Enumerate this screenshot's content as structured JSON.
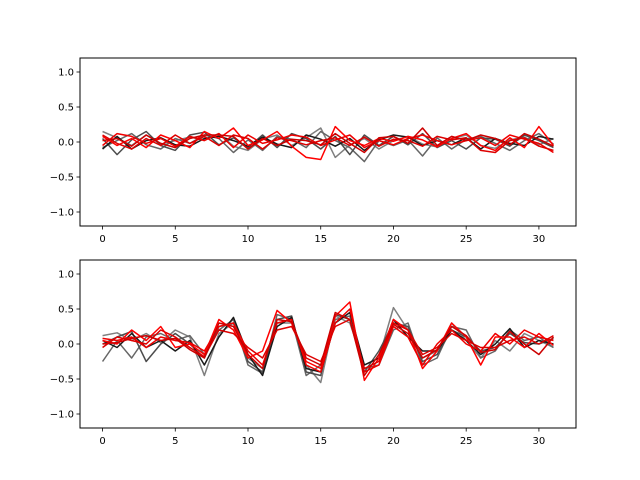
{
  "chart_data": [
    {
      "type": "line",
      "title": "",
      "xlabel": "",
      "ylabel": "",
      "xlim": [
        -1.55,
        32.55
      ],
      "ylim": [
        -1.2,
        1.2
      ],
      "xticks": [
        0,
        5,
        10,
        15,
        20,
        25,
        30
      ],
      "yticks": [
        -1.0,
        -0.5,
        0.0,
        0.5,
        1.0
      ],
      "tick_labels_x": [
        "0",
        "5",
        "10",
        "15",
        "20",
        "25",
        "30"
      ],
      "tick_labels_y": [
        "−1.0",
        "−0.5",
        "0.0",
        "0.5",
        "1.0"
      ],
      "grid": false,
      "x": [
        0,
        1,
        2,
        3,
        4,
        5,
        6,
        7,
        8,
        9,
        10,
        11,
        12,
        13,
        14,
        15,
        16,
        17,
        18,
        19,
        20,
        21,
        22,
        23,
        24,
        25,
        26,
        27,
        28,
        29,
        30,
        31
      ],
      "series": [
        {
          "color": "#7f7f7f",
          "values": [
            0.15,
            0.06,
            -0.05,
            0.1,
            -0.03,
            0.02,
            0.07,
            0.03,
            0.12,
            -0.06,
            -0.12,
            0.04,
            0.1,
            -0.05,
            0.06,
            0.2,
            -0.22,
            -0.04,
            0.05,
            -0.1,
            0.02,
            0.08,
            -0.03,
            -0.07,
            0.05,
            0.1,
            -0.05,
            -0.09,
            0.03,
            0.07,
            -0.04,
            0.05
          ]
        },
        {
          "color": "#666666",
          "values": [
            -0.08,
            0.02,
            0.12,
            -0.04,
            -0.1,
            0.05,
            -0.02,
            0.1,
            0.05,
            -0.15,
            0.03,
            -0.12,
            0.08,
            0.04,
            -0.08,
            0.15,
            0.02,
            -0.08,
            -0.28,
            0.02,
            -0.05,
            0.03,
            -0.2,
            0.06,
            -0.1,
            0.04,
            0.08,
            -0.02,
            -0.12,
            0.02,
            0.12,
            -0.03
          ]
        },
        {
          "color": "#4d4d4d",
          "values": [
            0.05,
            -0.18,
            0.03,
            0.15,
            -0.05,
            -0.12,
            0.1,
            0.14,
            -0.04,
            0.06,
            -0.08,
            0.1,
            -0.08,
            0.12,
            0.05,
            -0.1,
            0.08,
            -0.18,
            0.1,
            -0.05,
            0.08,
            -0.04,
            0.12,
            -0.08,
            0.02,
            -0.1,
            0.06,
            0.04,
            -0.06,
            0.1,
            0.02,
            -0.08
          ]
        },
        {
          "color": "#1a1a1a",
          "values": [
            -0.1,
            0.08,
            -0.1,
            0.02,
            0.06,
            -0.04,
            -0.06,
            0.05,
            0.08,
            0.02,
            -0.06,
            0.07,
            -0.03,
            -0.08,
            0.1,
            0.04,
            -0.06,
            0.05,
            -0.12,
            0.03,
            0.1,
            0.07,
            -0.05,
            0.02,
            -0.04,
            0.06,
            -0.1,
            0.05,
            -0.02,
            -0.05,
            0.08,
            0.04
          ]
        },
        {
          "color": "#ff0000",
          "values": [
            0.08,
            -0.05,
            0.05,
            -0.08,
            0.1,
            0.02,
            -0.08,
            0.15,
            0.05,
            0.2,
            -0.05,
            0.03,
            0.15,
            -0.06,
            -0.22,
            -0.25,
            0.22,
            0.02,
            -0.05,
            0.05,
            0.01,
            0.08,
            0.03,
            -0.07,
            0.05,
            0.12,
            -0.05,
            -0.12,
            0.06,
            -0.08,
            0.22,
            -0.05
          ]
        },
        {
          "color": "#ee0000",
          "values": [
            -0.05,
            0.12,
            0.08,
            -0.02,
            0.05,
            -0.06,
            0.08,
            0.02,
            0.12,
            -0.08,
            0.1,
            -0.02,
            0.03,
            0.1,
            0.07,
            -0.05,
            0.03,
            0.1,
            -0.08,
            0.02,
            -0.04,
            0.05,
            0.1,
            0.02,
            -0.04,
            0.02,
            0.06,
            -0.05,
            0.1,
            0.04,
            -0.02,
            -0.15
          ]
        },
        {
          "color": "#dd0000",
          "values": [
            0.1,
            -0.02,
            -0.1,
            0.05,
            -0.05,
            0.1,
            -0.02,
            0.08,
            -0.05,
            0.1,
            0.05,
            -0.1,
            0.06,
            0.02,
            -0.04,
            0.02,
            0.06,
            -0.05,
            0.07,
            -0.06,
            0.04,
            0.02,
            -0.06,
            0.08,
            0.03,
            0.06,
            -0.12,
            -0.15,
            0.02,
            0.06,
            -0.06,
            -0.12
          ]
        },
        {
          "color": "#cc0000",
          "values": [
            0.02,
            0.05,
            -0.06,
            0.1,
            -0.02,
            -0.08,
            0.05,
            0.1,
            0.1,
            0.08,
            -0.1,
            0.05,
            -0.05,
            0.04,
            0.02,
            -0.04,
            0.12,
            -0.02,
            -0.15,
            0.06,
            0.08,
            -0.02,
            0.2,
            -0.05,
            0.08,
            0.02,
            0.1,
            0.05,
            -0.04,
            0.12,
            0.04,
            -0.06
          ]
        }
      ]
    },
    {
      "type": "line",
      "title": "",
      "xlabel": "",
      "ylabel": "",
      "xlim": [
        -1.55,
        32.55
      ],
      "ylim": [
        -1.2,
        1.2
      ],
      "xticks": [
        0,
        5,
        10,
        15,
        20,
        25,
        30
      ],
      "yticks": [
        -1.0,
        -0.5,
        0.0,
        0.5,
        1.0
      ],
      "tick_labels_x": [
        "0",
        "5",
        "10",
        "15",
        "20",
        "25",
        "30"
      ],
      "tick_labels_y": [
        "−1.0",
        "−0.5",
        "0.0",
        "0.5",
        "1.0"
      ],
      "grid": false,
      "x": [
        0,
        1,
        2,
        3,
        4,
        5,
        6,
        7,
        8,
        9,
        10,
        11,
        12,
        13,
        14,
        15,
        16,
        17,
        18,
        19,
        20,
        21,
        22,
        23,
        24,
        25,
        26,
        27,
        28,
        29,
        30,
        31
      ],
      "series": [
        {
          "color": "#7f7f7f",
          "values": [
            0.12,
            0.16,
            0.05,
            0.15,
            0.02,
            0.2,
            0.1,
            -0.45,
            0.15,
            0.3,
            -0.2,
            -0.35,
            0.3,
            0.3,
            -0.3,
            -0.55,
            0.4,
            0.3,
            -0.3,
            -0.2,
            0.52,
            0.2,
            -0.2,
            -0.1,
            0.3,
            0.05,
            -0.2,
            0.05,
            -0.1,
            0.15,
            0.05,
            -0.05
          ]
        },
        {
          "color": "#666666",
          "values": [
            -0.25,
            0.05,
            -0.2,
            0.1,
            0.15,
            0.05,
            0.12,
            -0.15,
            0.2,
            0.35,
            -0.3,
            -0.42,
            0.42,
            0.35,
            -0.45,
            -0.3,
            0.35,
            0.4,
            -0.35,
            -0.3,
            0.2,
            0.3,
            -0.3,
            -0.2,
            0.25,
            0.2,
            -0.2,
            -0.1,
            0.2,
            0.05,
            0.1,
            -0.05
          ]
        },
        {
          "color": "#4d4d4d",
          "values": [
            0.0,
            0.1,
            0.18,
            -0.25,
            0.0,
            0.15,
            0.0,
            -0.2,
            0.25,
            0.3,
            -0.25,
            -0.4,
            0.35,
            0.4,
            -0.4,
            -0.45,
            0.42,
            0.35,
            -0.4,
            -0.1,
            0.3,
            0.25,
            -0.25,
            -0.15,
            0.2,
            0.1,
            -0.1,
            -0.05,
            0.15,
            0.02,
            0.0,
            0.08
          ]
        },
        {
          "color": "#1a1a1a",
          "values": [
            0.05,
            -0.05,
            0.15,
            -0.05,
            0.05,
            -0.1,
            0.05,
            -0.3,
            0.1,
            0.38,
            -0.15,
            -0.45,
            0.25,
            0.38,
            -0.35,
            -0.4,
            0.3,
            0.45,
            -0.3,
            -0.2,
            0.35,
            0.1,
            -0.1,
            -0.1,
            0.2,
            0.05,
            -0.15,
            0.0,
            0.22,
            -0.05,
            0.05,
            0.0
          ]
        },
        {
          "color": "#ff0000",
          "values": [
            0.05,
            0.0,
            0.2,
            0.05,
            0.25,
            -0.05,
            0.0,
            -0.15,
            0.35,
            0.2,
            -0.2,
            -0.1,
            0.48,
            0.3,
            -0.25,
            -0.35,
            0.4,
            0.6,
            -0.52,
            -0.2,
            0.35,
            0.2,
            -0.35,
            -0.1,
            0.3,
            0.1,
            -0.3,
            0.1,
            0.1,
            -0.05,
            0.15,
            -0.02
          ]
        },
        {
          "color": "#ee0000",
          "values": [
            0.08,
            0.05,
            0.1,
            -0.05,
            0.1,
            0.05,
            0.02,
            -0.1,
            0.25,
            0.3,
            -0.1,
            -0.3,
            0.3,
            0.35,
            -0.3,
            -0.4,
            0.3,
            0.5,
            -0.4,
            -0.3,
            0.25,
            0.1,
            -0.3,
            0.0,
            0.2,
            0.0,
            -0.1,
            0.15,
            0.0,
            0.2,
            0.1,
            0.05
          ]
        },
        {
          "color": "#dd0000",
          "values": [
            -0.05,
            0.1,
            0.05,
            0.0,
            0.2,
            0.1,
            -0.05,
            -0.18,
            0.2,
            0.15,
            -0.05,
            -0.2,
            0.2,
            0.25,
            -0.15,
            -0.25,
            0.25,
            0.35,
            -0.35,
            -0.25,
            0.3,
            0.2,
            -0.15,
            -0.05,
            0.15,
            0.05,
            -0.05,
            -0.05,
            0.05,
            0.1,
            0.0,
            0.12
          ]
        },
        {
          "color": "#cc0000",
          "values": [
            0.0,
            0.02,
            0.08,
            0.12,
            0.05,
            0.08,
            -0.08,
            -0.2,
            0.3,
            0.25,
            -0.15,
            -0.35,
            0.35,
            0.32,
            -0.2,
            -0.3,
            0.45,
            0.35,
            -0.45,
            -0.15,
            0.28,
            0.15,
            -0.2,
            -0.08,
            0.25,
            0.12,
            -0.12,
            -0.08,
            0.18,
            0.0,
            -0.15,
            0.1
          ]
        }
      ]
    }
  ]
}
